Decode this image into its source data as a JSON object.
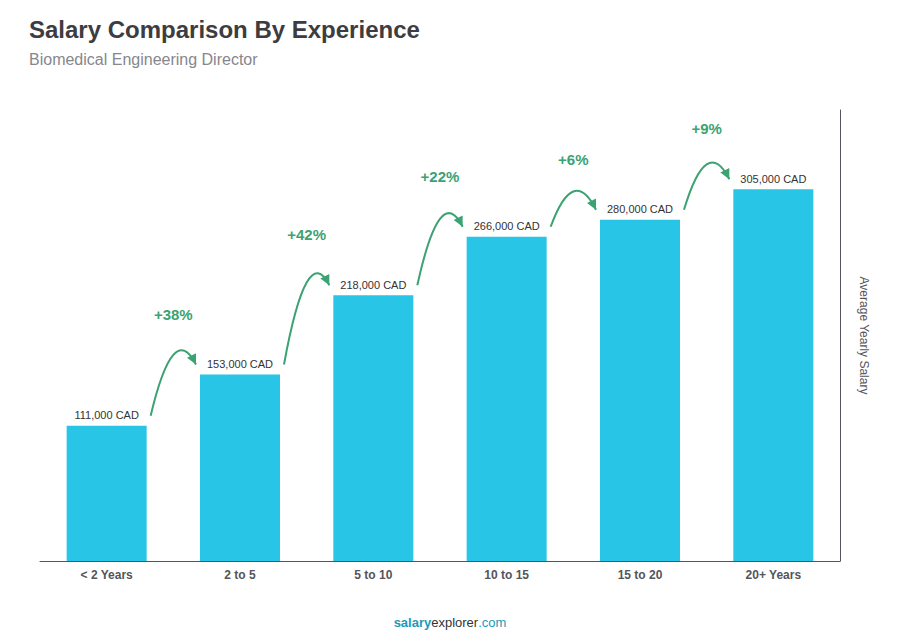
{
  "chart_data": {
    "type": "bar",
    "title": "Salary Comparison By Experience",
    "subtitle": "Biomedical Engineering Director",
    "categories": [
      "< 2 Years",
      "2 to 5",
      "5 to 10",
      "10 to 15",
      "15 to 20",
      "20+ Years"
    ],
    "values": [
      111000,
      153000,
      218000,
      266000,
      280000,
      305000
    ],
    "value_labels": [
      "111,000 CAD",
      "153,000 CAD",
      "218,000 CAD",
      "266,000 CAD",
      "280,000 CAD",
      "305,000 CAD"
    ],
    "data_labels": true,
    "annotations": [
      null,
      "+38%",
      "+42%",
      "+22%",
      "+6%",
      "+9%"
    ],
    "ylabel": "Average Yearly Salary",
    "footer": [
      "salary",
      "explorer",
      ".com"
    ],
    "color": "#29c5e6",
    "ylim": [
      0,
      370000
    ],
    "tick_labels": "x",
    "grid": false
  }
}
